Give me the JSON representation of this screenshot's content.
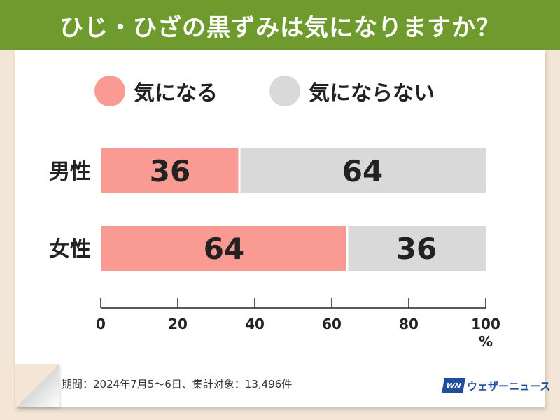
{
  "header": {
    "title": "ひじ・ひざの黒ずみは気になりますか？"
  },
  "colors": {
    "yes": "#f99b93",
    "no": "#d9d9d9",
    "header": "#6e9a2e"
  },
  "chart_data": {
    "type": "bar",
    "orientation": "horizontal",
    "stacked": true,
    "categories": [
      "男性",
      "女性"
    ],
    "series": [
      {
        "name": "気になる",
        "values": [
          36,
          64
        ]
      },
      {
        "name": "気にならない",
        "values": [
          64,
          36
        ]
      }
    ],
    "xlim": [
      0,
      100
    ],
    "xticks": [
      "0",
      "20",
      "40",
      "60",
      "80",
      "100"
    ],
    "xunit": "%",
    "legend": "top"
  },
  "footer": {
    "source": "期間：2024年7月5～6日、集計対象：13,496件",
    "logo_mark": "WN",
    "logo_text": "ウェザーニュース"
  }
}
